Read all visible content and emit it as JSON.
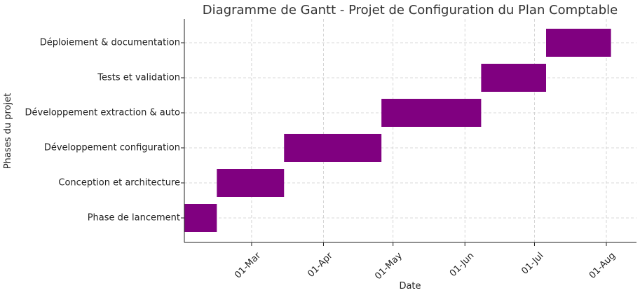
{
  "chart_data": {
    "type": "gantt",
    "title": "Diagramme de Gantt - Projet de Configuration du Plan Comptable",
    "xlabel": "Date",
    "ylabel": "Phases du projet",
    "bar_color": "#800080",
    "grid": true,
    "xlim": [
      "2024-02-01",
      "2024-08-14"
    ],
    "x_ticks": [
      {
        "label": "01-Mar",
        "date": "2024-03-01"
      },
      {
        "label": "01-Apr",
        "date": "2024-04-01"
      },
      {
        "label": "01-May",
        "date": "2024-05-01"
      },
      {
        "label": "01-Jun",
        "date": "2024-06-01"
      },
      {
        "label": "01-Jul",
        "date": "2024-07-01"
      },
      {
        "label": "01-Aug",
        "date": "2024-08-01"
      }
    ],
    "tasks": [
      {
        "name": "Phase de lancement",
        "start": "2024-02-01",
        "end": "2024-02-15"
      },
      {
        "name": "Conception et architecture",
        "start": "2024-02-15",
        "end": "2024-03-15"
      },
      {
        "name": "Développement configuration",
        "start": "2024-03-15",
        "end": "2024-04-26"
      },
      {
        "name": "Développement extraction & auto",
        "start": "2024-04-26",
        "end": "2024-06-08"
      },
      {
        "name": "Tests et validation",
        "start": "2024-06-08",
        "end": "2024-07-06"
      },
      {
        "name": "Déploiement & documentation",
        "start": "2024-07-06",
        "end": "2024-08-03"
      }
    ]
  }
}
